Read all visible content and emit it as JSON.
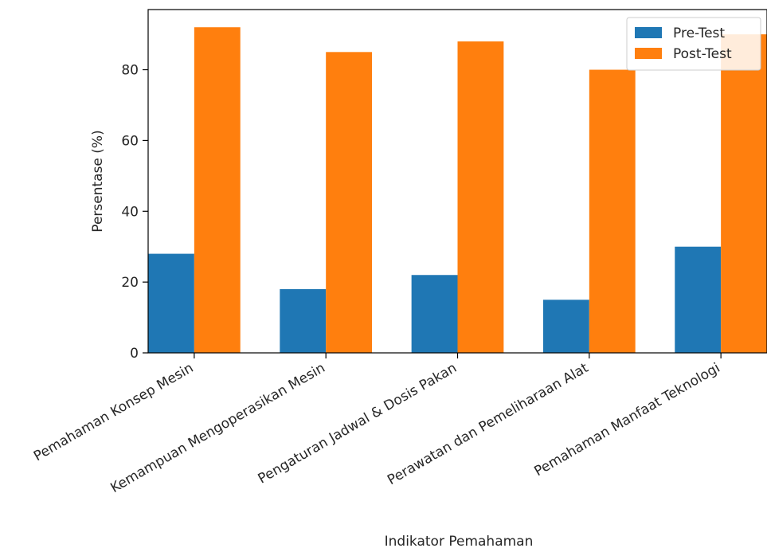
{
  "chart_data": {
    "type": "bar",
    "title": "",
    "xlabel": "Indikator Pemahaman",
    "ylabel": "Persentase (%)",
    "categories": [
      "Pemahaman Konsep Mesin",
      "Kemampuan Mengoperasikan Mesin",
      "Pengaturan Jadwal & Dosis Pakan",
      "Perawatan dan Pemeliharaan Alat",
      "Pemahaman Manfaat Teknologi"
    ],
    "series": [
      {
        "name": "Pre-Test",
        "color": "#1f77b4",
        "values": [
          28,
          18,
          22,
          15,
          30
        ]
      },
      {
        "name": "Post-Test",
        "color": "#ff7f0e",
        "values": [
          92,
          85,
          88,
          80,
          90
        ]
      }
    ],
    "ylim": [
      0,
      97
    ],
    "yticks": [
      0,
      20,
      40,
      60,
      80
    ],
    "legend": "top-right",
    "grid": false
  }
}
